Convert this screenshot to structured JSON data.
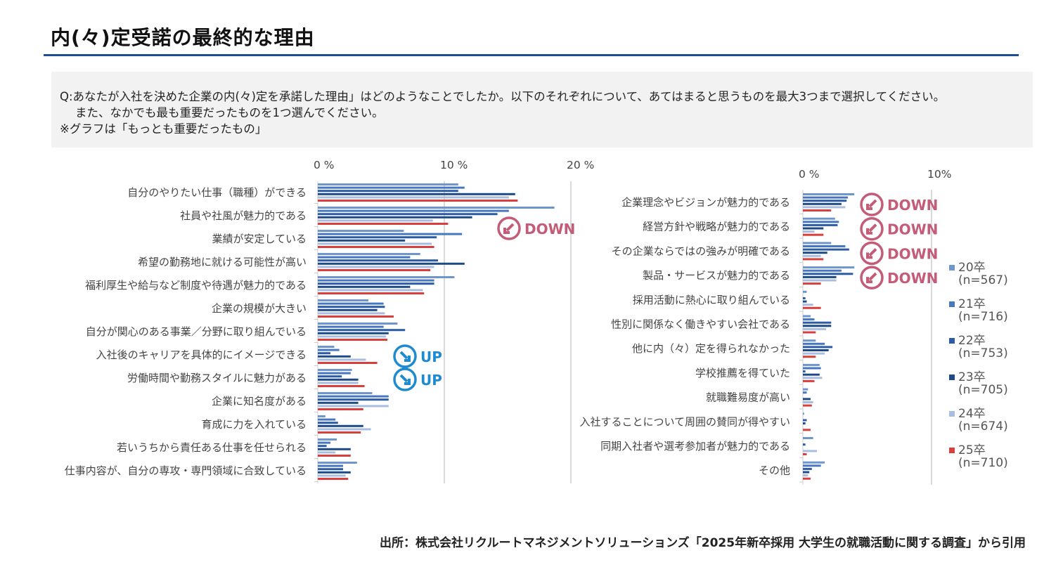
{
  "title": "内(々)定受諾の最終的な理由",
  "question": {
    "line1": "Q:あなたが入社を決めた企業の内(々)定を承諾した理由」はどのようなことでしたか。以下のそれぞれについて、あてはまると思うものを最大3つまで選択してください。",
    "line2": "また、なかでも最も重要だったものを1つ選んでください。",
    "line3": "※グラフは「もっとも重要だったもの」"
  },
  "source": "出所：株式会社リクルートマネジメントソリューションズ「2025年新卒採用 大学生の就職活動に関する調査」から引用",
  "colors": {
    "20卒": "#6f96cc",
    "21卒": "#4677c0",
    "22卒": "#2d5ca6",
    "23卒": "#1e4a86",
    "24卒": "#a9bde0",
    "25卒": "#d8403e",
    "down": "#c45c78",
    "up": "#1e8bd0",
    "grid": "#d9d9d9"
  },
  "chart_data": [
    {
      "type": "bar",
      "orientation": "horizontal",
      "xlim": [
        0,
        20
      ],
      "xticks": [
        "0 %",
        "10 %",
        "20 %"
      ],
      "xtick_values": [
        0,
        10,
        20
      ],
      "categories": [
        "自分のやりたい仕事（職種）ができる",
        "社員や社風が魅力的である",
        "業績が安定している",
        "希望の勤務地に就ける可能性が高い",
        "福利厚生や給与など制度や待遇が魅力的である",
        "企業の規模が大きい",
        "自分が関心のある事業／分野に取り組んでいる",
        "入社後のキャリアを具体的にイメージできる",
        "労働時間や勤務スタイルに魅力がある",
        "企業に知名度がある",
        "育成に力を入れている",
        "若いうちから責任ある仕事を任せられる",
        "仕事内容が、自分の専攻・専門領域に合致している"
      ],
      "series": [
        {
          "name": "20卒",
          "values": [
            11.1,
            18.7,
            6.8,
            8.1,
            10.8,
            4.0,
            6.3,
            1.3,
            2.7,
            4.3,
            0.6,
            1.5,
            3.1
          ]
        },
        {
          "name": "21卒",
          "values": [
            11.6,
            15.1,
            11.4,
            7.3,
            9.2,
            5.2,
            5.2,
            1.7,
            2.6,
            5.6,
            1.4,
            1.0,
            2.0
          ]
        },
        {
          "name": "22卒",
          "values": [
            11.1,
            14.2,
            9.4,
            9.5,
            9.2,
            5.3,
            6.9,
            1.0,
            1.9,
            5.6,
            1.6,
            0.7,
            2.0
          ]
        },
        {
          "name": "23卒",
          "values": [
            15.6,
            12.2,
            6.9,
            11.6,
            7.3,
            4.7,
            5.6,
            2.6,
            3.2,
            3.2,
            3.6,
            2.6,
            2.6
          ]
        },
        {
          "name": "24卒",
          "values": [
            15.1,
            9.1,
            9.0,
            9.2,
            8.3,
            5.3,
            5.4,
            3.8,
            3.2,
            5.6,
            4.2,
            1.4,
            2.2
          ]
        },
        {
          "name": "25卒",
          "values": [
            15.8,
            10.3,
            9.2,
            8.9,
            8.4,
            6.0,
            5.5,
            4.7,
            3.7,
            3.6,
            3.4,
            2.6,
            2.4
          ]
        }
      ],
      "annotations": [
        {
          "category_index": 1,
          "label": "DOWN",
          "kind": "down"
        },
        {
          "category_index": 7,
          "label": "UP",
          "kind": "up"
        },
        {
          "category_index": 8,
          "label": "UP",
          "kind": "up"
        }
      ]
    },
    {
      "type": "bar",
      "orientation": "horizontal",
      "xlim": [
        0,
        10
      ],
      "xticks": [
        "0 %",
        "10%"
      ],
      "xtick_values": [
        0,
        10
      ],
      "categories": [
        "企業理念やビジョンが魅力的である",
        "経営方針や戦略が魅力的である",
        "その企業ならではの強みが明確である",
        "製品・サービスが魅力的である",
        "採用活動に熱心に取り組んでいる",
        "性別に関係なく働きやすい会社である",
        "他に内（々）定を得られなかった",
        "学校推薦を得ていた",
        "就職難易度が高い",
        "入社することについて周囲の賛同が得やすい",
        "同期入社者や選考参加者が魅力的である",
        "その他"
      ],
      "series": [
        {
          "name": "20卒",
          "values": [
            4.0,
            2.5,
            2.2,
            4.0,
            0.3,
            0.6,
            1.0,
            1.3,
            0.4,
            0.1,
            0.8,
            1.7
          ]
        },
        {
          "name": "21卒",
          "values": [
            3.5,
            2.8,
            3.3,
            3.0,
            0.0,
            0.9,
            1.7,
            1.4,
            0.3,
            0.0,
            0.0,
            1.4
          ]
        },
        {
          "name": "22卒",
          "values": [
            3.4,
            2.7,
            3.6,
            3.9,
            0.2,
            2.2,
            2.3,
            0.2,
            0.0,
            0.3,
            0.2,
            0.7
          ]
        },
        {
          "name": "23卒",
          "values": [
            3.0,
            1.6,
            1.9,
            2.6,
            0.3,
            2.2,
            2.0,
            1.3,
            0.6,
            0.2,
            0.0,
            0.5
          ]
        },
        {
          "name": "24卒",
          "values": [
            3.3,
            0.9,
            1.4,
            2.6,
            0.8,
            1.8,
            1.7,
            1.5,
            0.8,
            0.0,
            1.1,
            0.4
          ]
        },
        {
          "name": "25卒",
          "values": [
            2.2,
            1.6,
            1.6,
            1.4,
            1.4,
            1.0,
            1.0,
            0.9,
            0.7,
            0.6,
            0.3,
            0.6
          ]
        }
      ],
      "annotations": [
        {
          "category_index": 0,
          "label": "DOWN",
          "kind": "down"
        },
        {
          "category_index": 1,
          "label": "DOWN",
          "kind": "down"
        },
        {
          "category_index": 2,
          "label": "DOWN",
          "kind": "down"
        },
        {
          "category_index": 3,
          "label": "DOWN",
          "kind": "down"
        }
      ]
    }
  ],
  "legend": [
    {
      "name": "20卒",
      "n": "(n=567)"
    },
    {
      "name": "21卒",
      "n": "(n=716)"
    },
    {
      "name": "22卒",
      "n": "(n=753)"
    },
    {
      "name": "23卒",
      "n": "(n=705)"
    },
    {
      "name": "24卒",
      "n": "(n=674)"
    },
    {
      "name": "25卒",
      "n": "(n=710)"
    }
  ]
}
